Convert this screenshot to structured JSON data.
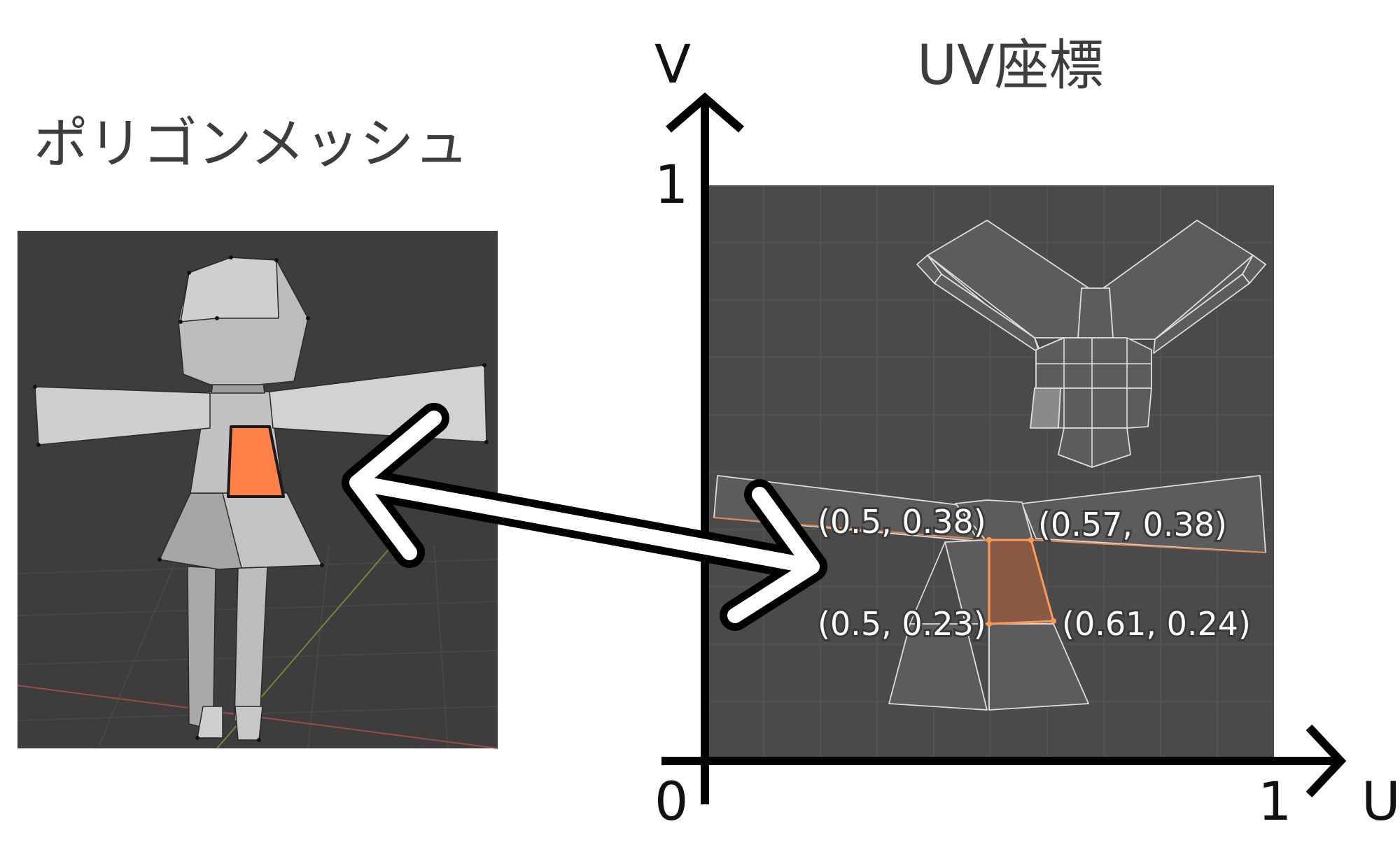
{
  "left_title": "ポリゴンメッシュ",
  "right_title": "UV座標",
  "axes": {
    "v_label": "V",
    "u_label": "U",
    "origin_label": "0",
    "v_one_label": "1",
    "u_one_label": "1"
  },
  "highlighted_face": {
    "top_left": "(0.5, 0.38)",
    "top_right": "(0.57, 0.38)",
    "bottom_left": "(0.5, 0.23)",
    "bottom_right": "(0.61, 0.24)"
  },
  "colors": {
    "viewport_bg": "#3d3d3d",
    "uv_bg": "#4a4a4a",
    "face_fill": "#5c5c5c",
    "face_edge": "#dcdcdc",
    "highlight": "#ff8148",
    "highlight_uv": "#8a5a44",
    "axis": "#000000"
  }
}
